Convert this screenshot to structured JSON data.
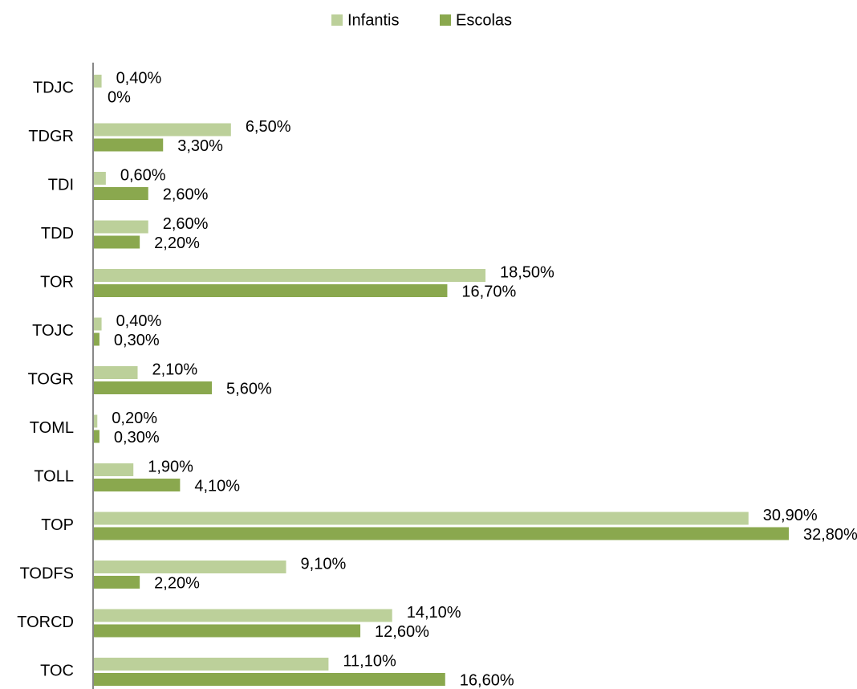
{
  "chart_data": {
    "type": "bar",
    "orientation": "horizontal",
    "categories": [
      "TDJC",
      "TDGR",
      "TDI",
      "TDD",
      "TOR",
      "TOJC",
      "TOGR",
      "TOML",
      "TOLL",
      "TOP",
      "TODFS",
      "TORCD",
      "TOC"
    ],
    "series": [
      {
        "name": "Infantis",
        "color": "#bcd09a",
        "values": [
          0.4,
          6.5,
          0.6,
          2.6,
          18.5,
          0.4,
          2.1,
          0.2,
          1.9,
          30.9,
          9.1,
          14.1,
          11.1
        ],
        "value_labels": [
          "0,40%",
          "6,50%",
          "0,60%",
          "2,60%",
          "18,50%",
          "0,40%",
          "2,10%",
          "0,20%",
          "1,90%",
          "30,90%",
          "9,10%",
          "14,10%",
          "11,10%"
        ]
      },
      {
        "name": "Escolas",
        "color": "#8aa84e",
        "values": [
          0,
          3.3,
          2.6,
          2.2,
          16.7,
          0.3,
          5.6,
          0.3,
          4.1,
          32.8,
          2.2,
          12.6,
          16.6
        ],
        "value_labels": [
          "0%",
          "3,30%",
          "2,60%",
          "2,20%",
          "16,70%",
          "0,30%",
          "5,60%",
          "0,30%",
          "4,10%",
          "32,80%",
          "2,20%",
          "12,60%",
          "16,60%"
        ]
      }
    ],
    "legend": "top"
  }
}
